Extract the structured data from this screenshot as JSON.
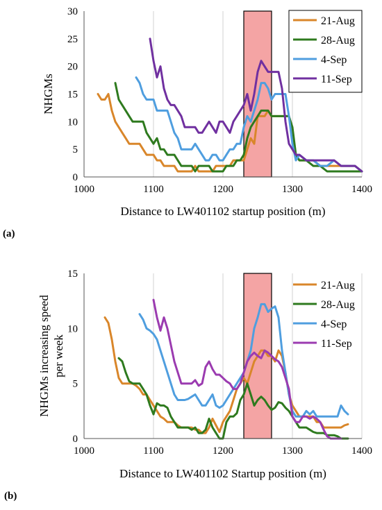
{
  "panels": [
    {
      "label": "(a)"
    },
    {
      "label": "(b)"
    }
  ],
  "colors": {
    "21-Aug": "#D9862A",
    "28-Aug": "#2E7A1E",
    "4-Sep": "#4F9EDF",
    "11-Sep": "#7030A0",
    "11-Sep-b": "#9B3BB0",
    "highlight": "#F4A4A4",
    "grid": "#D9D9D9"
  },
  "chart_data": [
    {
      "type": "line",
      "title": "",
      "xlabel": "Distance to LW401102 startup position (m)",
      "ylabel": "NHGMs",
      "xlim": [
        1000,
        1400
      ],
      "ylim": [
        0,
        30
      ],
      "xticks": [
        1000,
        1100,
        1200,
        1300,
        1400
      ],
      "yticks": [
        0,
        5,
        10,
        15,
        20,
        25,
        30
      ],
      "grid": "vertical",
      "legend": "top-right, boxed",
      "highlight_x": [
        1230,
        1270
      ],
      "series": [
        {
          "name": "21-Aug",
          "x": [
            1020,
            1025,
            1030,
            1035,
            1040,
            1045,
            1050,
            1055,
            1060,
            1065,
            1070,
            1075,
            1080,
            1085,
            1090,
            1095,
            1100,
            1105,
            1110,
            1115,
            1120,
            1125,
            1130,
            1135,
            1140,
            1145,
            1150,
            1155,
            1160,
            1165,
            1170,
            1175,
            1180,
            1185,
            1190,
            1195,
            1200,
            1205,
            1210,
            1215,
            1220,
            1225,
            1230,
            1235,
            1240,
            1245,
            1250,
            1255,
            1260,
            1265,
            1270,
            1275,
            1280,
            1285,
            1290,
            1295,
            1300,
            1305,
            1310,
            1320,
            1330,
            1340,
            1350,
            1360,
            1370,
            1380,
            1390,
            1400
          ],
          "y": [
            15,
            14,
            14,
            15,
            12,
            10,
            9,
            8,
            7,
            6,
            6,
            6,
            6,
            5,
            4,
            4,
            4,
            3,
            3,
            2,
            2,
            2,
            2,
            1,
            1,
            1,
            1,
            1,
            2,
            1,
            1,
            1,
            1,
            1,
            2,
            2,
            2,
            2,
            2,
            3,
            3,
            3,
            3,
            5,
            7,
            6,
            11,
            11,
            11,
            12,
            11,
            11,
            11,
            11,
            11,
            11,
            8,
            4,
            3,
            3,
            3,
            2,
            2,
            2,
            2,
            2,
            2,
            1
          ]
        },
        {
          "name": "28-Aug",
          "x": [
            1045,
            1050,
            1055,
            1060,
            1065,
            1070,
            1075,
            1080,
            1085,
            1090,
            1095,
            1100,
            1105,
            1110,
            1115,
            1120,
            1125,
            1130,
            1135,
            1140,
            1145,
            1150,
            1155,
            1160,
            1165,
            1170,
            1175,
            1180,
            1185,
            1190,
            1195,
            1200,
            1205,
            1210,
            1215,
            1220,
            1225,
            1230,
            1235,
            1240,
            1245,
            1250,
            1255,
            1260,
            1265,
            1270,
            1275,
            1280,
            1285,
            1290,
            1295,
            1300,
            1305,
            1310,
            1320,
            1330,
            1340,
            1350,
            1360,
            1370,
            1380,
            1390,
            1400
          ],
          "y": [
            17,
            14,
            13,
            12,
            11,
            10,
            10,
            10,
            10,
            8,
            7,
            6,
            7,
            5,
            5,
            4,
            4,
            4,
            3,
            2,
            2,
            2,
            2,
            1,
            2,
            2,
            2,
            2,
            1,
            1,
            1,
            1,
            2,
            2,
            2,
            3,
            3,
            4,
            7,
            9,
            10,
            11,
            12,
            12,
            12,
            11,
            11,
            11,
            11,
            11,
            11,
            9,
            4,
            3,
            3,
            2,
            2,
            1,
            1,
            1,
            1,
            1,
            1
          ]
        },
        {
          "name": "4-Sep",
          "x": [
            1075,
            1080,
            1085,
            1090,
            1095,
            1100,
            1105,
            1110,
            1115,
            1120,
            1125,
            1130,
            1135,
            1140,
            1145,
            1150,
            1155,
            1160,
            1165,
            1170,
            1175,
            1180,
            1185,
            1190,
            1195,
            1200,
            1205,
            1210,
            1215,
            1220,
            1225,
            1230,
            1235,
            1240,
            1245,
            1250,
            1255,
            1260,
            1265,
            1270,
            1275,
            1280,
            1285,
            1290,
            1295,
            1300,
            1305,
            1310,
            1320,
            1330,
            1340,
            1350,
            1360,
            1370,
            1380,
            1390,
            1400
          ],
          "y": [
            18,
            17,
            15,
            14,
            14,
            14,
            12,
            12,
            12,
            12,
            10,
            8,
            7,
            5,
            5,
            5,
            5,
            6,
            5,
            4,
            3,
            3,
            4,
            4,
            3,
            3,
            4,
            5,
            5,
            6,
            6,
            9,
            11,
            10,
            12,
            14,
            17,
            17,
            16,
            14,
            15,
            15,
            15,
            15,
            11,
            6,
            3,
            4,
            3,
            3,
            2,
            2,
            3,
            2,
            2,
            2,
            1
          ]
        },
        {
          "name": "11-Sep",
          "x": [
            1095,
            1100,
            1105,
            1110,
            1115,
            1120,
            1125,
            1130,
            1135,
            1140,
            1145,
            1150,
            1155,
            1160,
            1165,
            1170,
            1175,
            1180,
            1185,
            1190,
            1195,
            1200,
            1205,
            1210,
            1215,
            1220,
            1225,
            1230,
            1235,
            1240,
            1245,
            1250,
            1255,
            1260,
            1265,
            1270,
            1275,
            1280,
            1285,
            1290,
            1295,
            1300,
            1305,
            1310,
            1320,
            1330,
            1340,
            1350,
            1360,
            1370,
            1380,
            1390,
            1400
          ],
          "y": [
            25,
            21,
            18,
            20,
            16,
            14,
            13,
            13,
            12,
            11,
            9,
            9,
            9,
            9,
            8,
            8,
            9,
            10,
            9,
            8,
            10,
            10,
            9,
            8,
            10,
            11,
            12,
            13,
            15,
            12,
            15,
            19,
            21,
            20,
            19,
            19,
            19,
            19,
            16,
            10,
            6,
            5,
            4,
            4,
            3,
            3,
            3,
            3,
            3,
            2,
            2,
            2,
            1
          ]
        }
      ]
    },
    {
      "type": "line",
      "title": "",
      "xlabel": "Distance to LW401102 Startup position (m)",
      "ylabel": "NHGMs increasing speed per week",
      "xlim": [
        1000,
        1400
      ],
      "ylim": [
        0,
        15
      ],
      "xticks": [
        1000,
        1100,
        1200,
        1300,
        1400
      ],
      "yticks": [
        0,
        5,
        10,
        15
      ],
      "grid": "vertical",
      "legend": "top-right, unboxed",
      "highlight_x": [
        1230,
        1270
      ],
      "series": [
        {
          "name": "21-Aug",
          "x": [
            1030,
            1035,
            1040,
            1045,
            1050,
            1055,
            1060,
            1065,
            1070,
            1075,
            1080,
            1085,
            1090,
            1095,
            1100,
            1105,
            1110,
            1115,
            1120,
            1125,
            1130,
            1135,
            1140,
            1145,
            1150,
            1155,
            1160,
            1165,
            1170,
            1175,
            1180,
            1185,
            1190,
            1195,
            1200,
            1205,
            1210,
            1215,
            1220,
            1225,
            1230,
            1235,
            1240,
            1245,
            1250,
            1255,
            1260,
            1265,
            1270,
            1275,
            1280,
            1285,
            1290,
            1295,
            1300,
            1305,
            1310,
            1315,
            1320,
            1325,
            1330,
            1335,
            1340,
            1345,
            1350,
            1355,
            1360,
            1365,
            1370,
            1375,
            1380
          ],
          "y": [
            11,
            10.5,
            9,
            7,
            5.5,
            5,
            5,
            5,
            5,
            4.8,
            4.5,
            4,
            4,
            3.5,
            3,
            2.5,
            2,
            1.8,
            1.5,
            1.5,
            1.5,
            1.2,
            1,
            1,
            1,
            1,
            0.8,
            0.8,
            0.5,
            0.5,
            1,
            1.8,
            1.2,
            0.6,
            1.5,
            2,
            2.5,
            3.5,
            4.5,
            5,
            5.5,
            5,
            6,
            7,
            7.5,
            8,
            8,
            7.5,
            7.5,
            7,
            8,
            7.5,
            6,
            4,
            3,
            2.5,
            2,
            2,
            2,
            2,
            2,
            1.5,
            1.5,
            1,
            1,
            1,
            1,
            1,
            1,
            1.2,
            1.3
          ]
        },
        {
          "name": "28-Aug",
          "x": [
            1050,
            1055,
            1060,
            1065,
            1070,
            1075,
            1080,
            1085,
            1090,
            1095,
            1100,
            1105,
            1110,
            1115,
            1120,
            1125,
            1130,
            1135,
            1140,
            1145,
            1150,
            1155,
            1160,
            1165,
            1170,
            1175,
            1180,
            1185,
            1190,
            1195,
            1200,
            1205,
            1210,
            1215,
            1220,
            1225,
            1230,
            1235,
            1240,
            1245,
            1250,
            1255,
            1260,
            1265,
            1270,
            1275,
            1280,
            1285,
            1290,
            1295,
            1300,
            1305,
            1310,
            1315,
            1320,
            1325,
            1330,
            1335,
            1340,
            1345,
            1350,
            1355,
            1360,
            1365,
            1370,
            1375,
            1380
          ],
          "y": [
            7.3,
            7,
            6,
            5.2,
            5,
            5,
            5,
            4.5,
            4,
            3,
            2.2,
            3.2,
            3,
            3,
            2.8,
            2,
            1.5,
            1,
            1,
            1,
            1,
            0.8,
            1,
            0.5,
            0.5,
            0.8,
            1.8,
            1,
            0.5,
            0,
            0,
            1.5,
            2,
            2,
            2.3,
            3.5,
            4,
            5,
            4,
            3,
            3.5,
            3.8,
            3.5,
            3,
            2.6,
            2.8,
            3.3,
            3.2,
            2.8,
            2.5,
            2,
            1.5,
            1,
            1,
            1,
            0.8,
            0.6,
            0.5,
            0.5,
            0.5,
            0.3,
            0.3,
            0.3,
            0.2,
            0,
            0,
            0
          ]
        },
        {
          "name": "4-Sep",
          "x": [
            1080,
            1085,
            1090,
            1095,
            1100,
            1105,
            1110,
            1115,
            1120,
            1125,
            1130,
            1135,
            1140,
            1145,
            1150,
            1155,
            1160,
            1165,
            1170,
            1175,
            1180,
            1185,
            1190,
            1195,
            1200,
            1205,
            1210,
            1215,
            1220,
            1225,
            1230,
            1235,
            1240,
            1245,
            1250,
            1255,
            1260,
            1265,
            1270,
            1275,
            1280,
            1285,
            1290,
            1295,
            1300,
            1305,
            1310,
            1315,
            1320,
            1325,
            1330,
            1335,
            1340,
            1345,
            1350,
            1355,
            1360,
            1365,
            1370,
            1375,
            1380
          ],
          "y": [
            11.3,
            10.8,
            10,
            9.8,
            9.5,
            9,
            8,
            7,
            6,
            5,
            4,
            3.5,
            3.5,
            3.5,
            3.6,
            3.8,
            4,
            3.5,
            3,
            3,
            3.5,
            4,
            3,
            2.8,
            3,
            3.5,
            4,
            4.5,
            5,
            5.5,
            6,
            7,
            8,
            10,
            11,
            12.2,
            12.2,
            11.5,
            11.8,
            12,
            11,
            8,
            6,
            4,
            2.5,
            2,
            2,
            2,
            2.5,
            2.2,
            2.5,
            2,
            2,
            2,
            2,
            2,
            2,
            2,
            3,
            2.5,
            2.2
          ]
        },
        {
          "name": "11-Sep",
          "x": [
            1100,
            1105,
            1110,
            1115,
            1120,
            1125,
            1130,
            1135,
            1140,
            1145,
            1150,
            1155,
            1160,
            1165,
            1170,
            1175,
            1180,
            1185,
            1190,
            1195,
            1200,
            1205,
            1210,
            1215,
            1220,
            1225,
            1230,
            1235,
            1240,
            1245,
            1250,
            1255,
            1260,
            1265,
            1270,
            1275,
            1280,
            1285,
            1290,
            1295,
            1300,
            1305,
            1310,
            1315,
            1320,
            1325,
            1330,
            1335,
            1340,
            1345,
            1350,
            1355,
            1360,
            1365,
            1370
          ],
          "y": [
            12.6,
            11,
            9.8,
            11,
            10,
            8.5,
            7,
            6,
            5,
            5,
            5,
            5,
            5.3,
            4.8,
            5,
            6.5,
            7,
            6.3,
            5.8,
            5.8,
            5.5,
            5.2,
            5,
            4.5,
            4.5,
            5,
            6,
            7,
            7.5,
            7.8,
            7.5,
            7.3,
            8,
            7.8,
            7.5,
            7.2,
            7,
            6.5,
            5.5,
            4.5,
            2,
            1.5,
            1.5,
            2,
            2,
            1.8,
            2,
            1.8,
            1.5,
            0.8,
            0.2,
            0,
            0,
            0,
            0
          ]
        }
      ]
    }
  ]
}
